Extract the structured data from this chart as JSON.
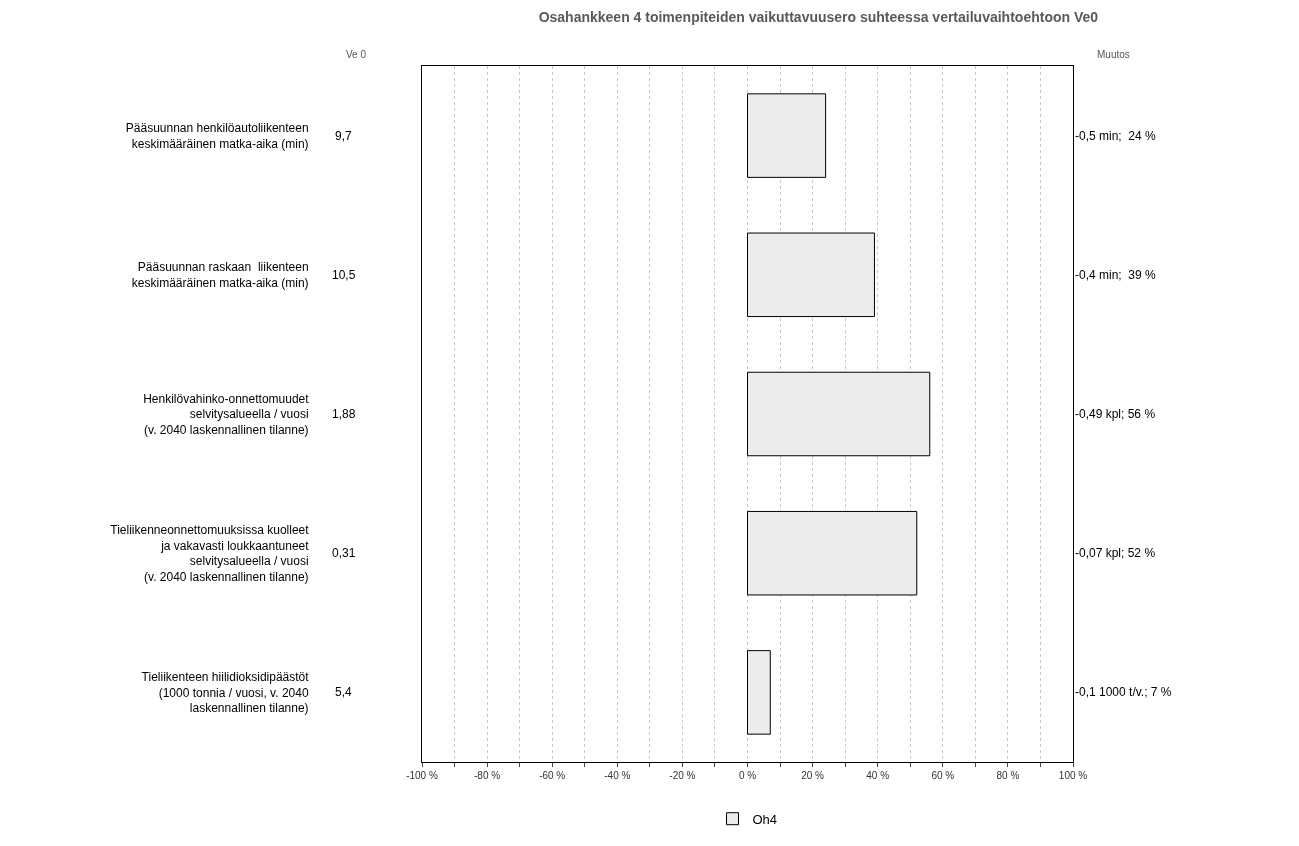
{
  "chart_data": {
    "type": "bar",
    "orientation": "horizontal",
    "title": "Osahankkeen 4 toimenpiteiden vaikuttavuusero suhteessa vertailuvaihtoehtoon Ve0",
    "categories": [
      "Pääsuunnan henkilöautoliikenteen\nkeskimääräinen matka-aika (min)",
      "Pääsuunnan raskaan  liikenteen\nkeskimääräinen matka-aika (min)",
      "Henkilövahinko-onnettomuudet\nselvitysalueella / vuosi\n(v. 2040 laskennallinen tilanne)",
      "Tieliikenneonnettomuuksissa kuolleet\nja vakavasti loukkaantuneet\nselvitysalueella / vuosi\n(v. 2040 laskennallinen tilanne)",
      "Tieliikenteen hiilidioksidipäästöt\n(1000 tonnia / vuosi, v. 2040\nlaskennallinen tilanne)"
    ],
    "series": [
      {
        "name": "Oh4",
        "color": "#ececec",
        "values": [
          24,
          39,
          56,
          52,
          7
        ]
      }
    ],
    "xlim": [
      -100,
      100
    ],
    "xticks": [
      {
        "value": -100,
        "label": "-100 %"
      },
      {
        "value": -90,
        "label": null
      },
      {
        "value": -80,
        "label": "-80 %"
      },
      {
        "value": -70,
        "label": null
      },
      {
        "value": -60,
        "label": "-60 %"
      },
      {
        "value": -50,
        "label": null
      },
      {
        "value": -40,
        "label": "-40 %"
      },
      {
        "value": -30,
        "label": null
      },
      {
        "value": -20,
        "label": "-20 %"
      },
      {
        "value": -10,
        "label": null
      },
      {
        "value": 0,
        "label": "0 %"
      },
      {
        "value": 10,
        "label": null
      },
      {
        "value": 20,
        "label": "20 %"
      },
      {
        "value": 30,
        "label": null
      },
      {
        "value": 40,
        "label": "40 %"
      },
      {
        "value": 50,
        "label": null
      },
      {
        "value": 60,
        "label": "60 %"
      },
      {
        "value": 70,
        "label": null
      },
      {
        "value": 80,
        "label": "80 %"
      },
      {
        "value": 90,
        "label": null
      },
      {
        "value": 100,
        "label": "100 %"
      }
    ],
    "grid": "x",
    "legend": "bottom",
    "annotations": [
      "Ve 0",
      "9,7",
      "10,5",
      "1,88",
      "0,31",
      "5,4",
      "Muutos",
      "-0,5 min;  24 %",
      "-0,4 min;  39 %",
      "-0,49 kpl; 56 %",
      "-0,07 kpl; 52 %",
      "-0,1 1000 t/v.; 7 %"
    ]
  }
}
